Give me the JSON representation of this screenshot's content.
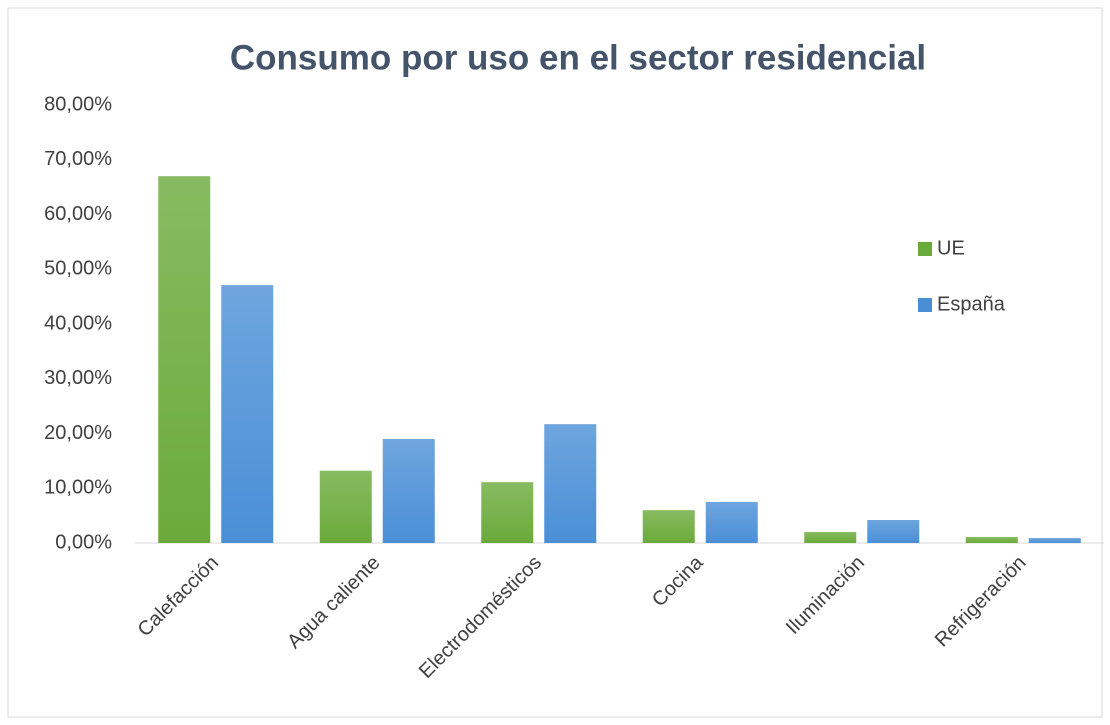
{
  "chart_data": {
    "type": "bar",
    "title": "Consumo por uso en el sector residencial",
    "categories": [
      "Calefacción",
      "Agua caliente",
      "Electrodomésticos",
      "Cocina",
      "Iluminación",
      "Refrigeración"
    ],
    "series": [
      {
        "name": "UE",
        "color": "#6aaa3a",
        "values": [
          67,
          13.2,
          11.1,
          6,
          2,
          1.1
        ]
      },
      {
        "name": "España",
        "color": "#4a8fd6",
        "values": [
          47.1,
          19,
          21.7,
          7.5,
          4.2,
          0.9
        ]
      }
    ],
    "ylim": [
      0,
      80
    ],
    "yticks": [
      {
        "value": 0,
        "label": "0,00%"
      },
      {
        "value": 10,
        "label": "10,00%"
      },
      {
        "value": 20,
        "label": "20,00%"
      },
      {
        "value": 30,
        "label": "30,00%"
      },
      {
        "value": 40,
        "label": "40,00%"
      },
      {
        "value": 50,
        "label": "50,00%"
      },
      {
        "value": 60,
        "label": "60,00%"
      },
      {
        "value": 70,
        "label": "70,00%"
      },
      {
        "value": 80,
        "label": "80,00%"
      }
    ],
    "grid": false,
    "legend": "right"
  }
}
